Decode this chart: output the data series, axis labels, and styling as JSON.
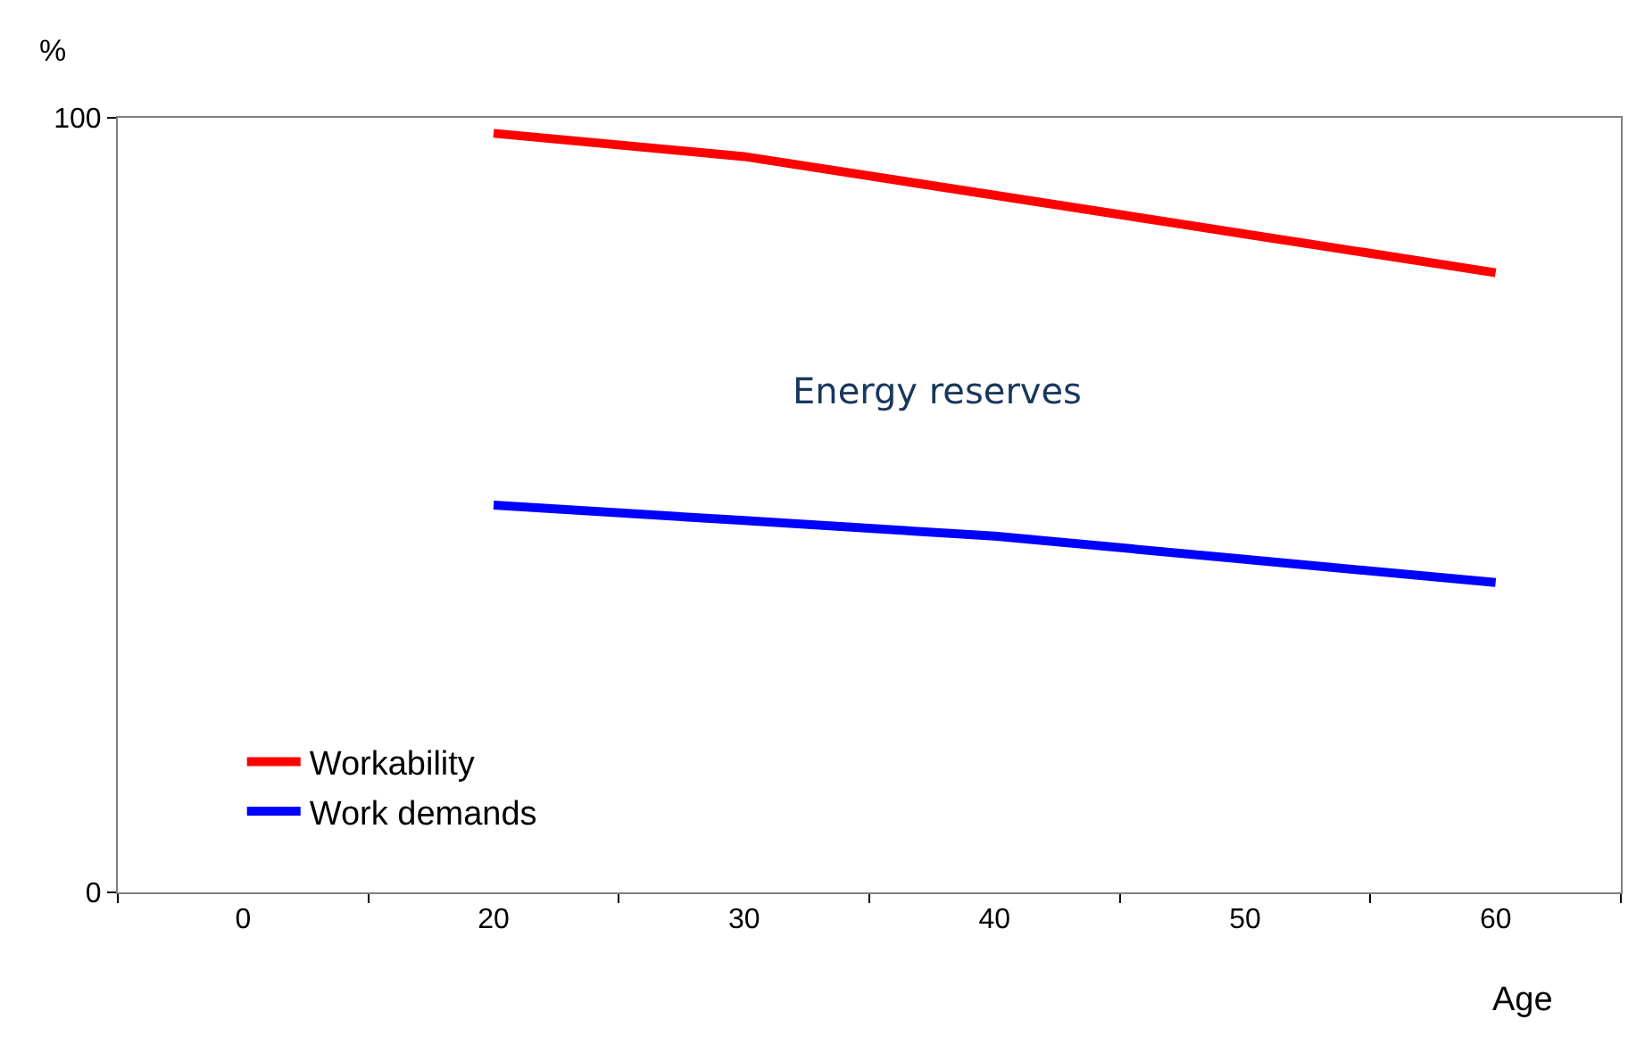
{
  "chart_data": {
    "type": "line",
    "xlabel": "Age",
    "ylabel": "%",
    "categories": [
      "0",
      "20",
      "30",
      "40",
      "50",
      "60"
    ],
    "series": [
      {
        "name": "Workability",
        "color": "#ff0000",
        "values": [
          null,
          98,
          95,
          90,
          85,
          80
        ]
      },
      {
        "name": "Work demands",
        "color": "#0000ff",
        "values": [
          null,
          50,
          48,
          46,
          43,
          40
        ]
      }
    ],
    "ylim": [
      0,
      100
    ],
    "yticks": [
      0,
      100
    ],
    "grid": false,
    "legend": "bottom left",
    "marker": "none",
    "line_style": "solid",
    "annotations": [
      "Energy reserves"
    ]
  }
}
